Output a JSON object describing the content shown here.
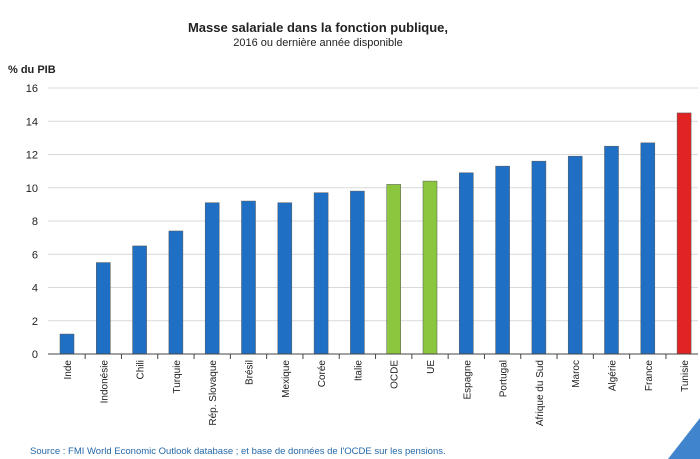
{
  "chart_data": {
    "type": "bar",
    "title": "Masse salariale dans la fonction publique,",
    "subtitle": "2016 ou dernière année disponible",
    "ylabel": "% du PIB",
    "xlabel": "",
    "ylim": [
      0,
      16
    ],
    "yticks": [
      0,
      2,
      4,
      6,
      8,
      10,
      12,
      14,
      16
    ],
    "grid": true,
    "categories": [
      "Inde",
      "Indonésie",
      "Chili",
      "Turquie",
      "Rép. Slovaque",
      "Brésil",
      "Mexique",
      "Corée",
      "Italie",
      "OCDE",
      "UE",
      "Espagne",
      "Portugal",
      "Afrique du Sud",
      "Maroc",
      "Algérie",
      "France",
      "Tunisie"
    ],
    "values": [
      1.2,
      5.5,
      6.5,
      7.4,
      9.1,
      9.2,
      9.1,
      9.7,
      9.8,
      10.2,
      10.4,
      10.9,
      11.3,
      11.6,
      11.9,
      12.5,
      12.7,
      14.5
    ],
    "colors": {
      "default": "#1f6fc4",
      "Tunisie": "#e02424",
      "OCDE": "#8cc63f",
      "UE": "#8cc63f"
    }
  },
  "source": "Source : FMI World Economic Outlook database ; et base de données de l'OCDE sur les pensions."
}
